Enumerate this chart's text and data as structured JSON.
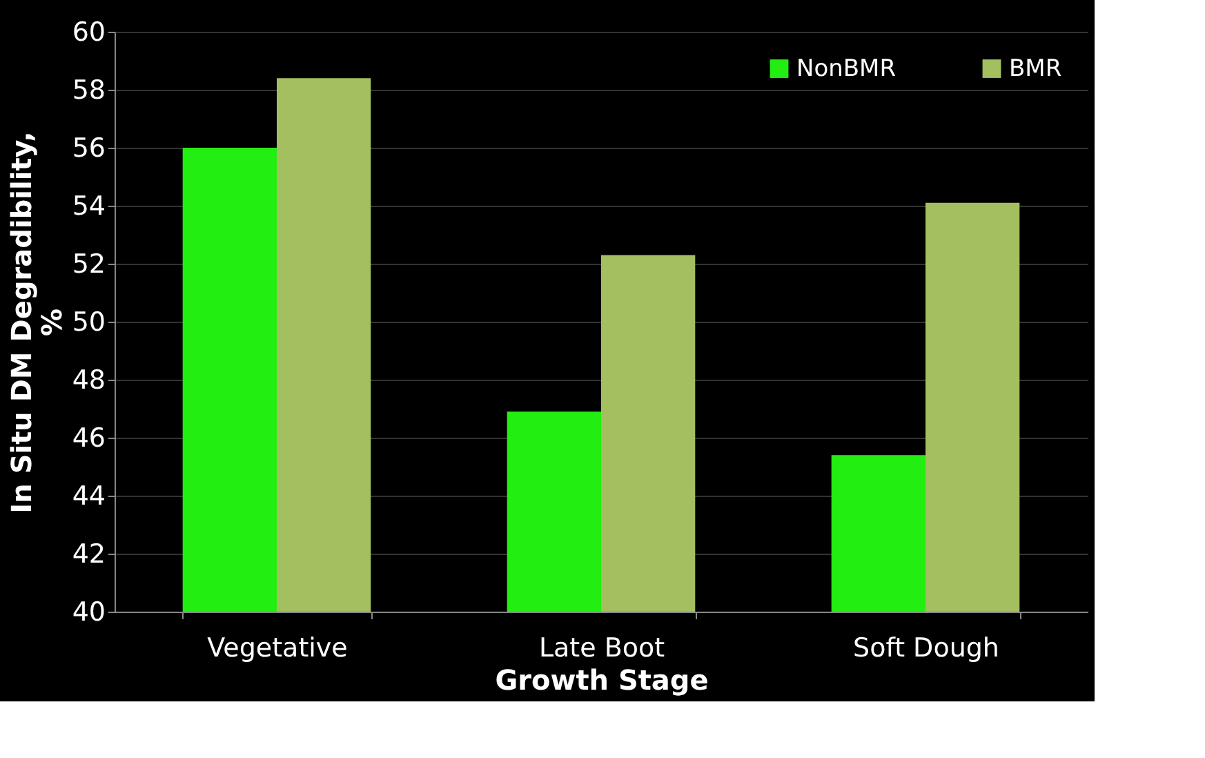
{
  "chart_data": {
    "type": "bar",
    "xlabel": "Growth Stage",
    "ylabel": "In Situ DM Degradibility, %",
    "categories": [
      "Vegetative",
      "Late Boot",
      "Soft Dough"
    ],
    "series": [
      {
        "name": "NonBMR",
        "color": "#22ee11",
        "values": [
          56.0,
          46.9,
          45.4
        ]
      },
      {
        "name": "BMR",
        "color": "#a3bf5f",
        "values": [
          58.4,
          52.3,
          54.1
        ]
      }
    ],
    "ylim": [
      40,
      60
    ],
    "yticks": [
      40,
      42,
      44,
      46,
      48,
      50,
      52,
      54,
      56,
      58,
      60
    ],
    "grid": "y",
    "legend": "top right"
  }
}
